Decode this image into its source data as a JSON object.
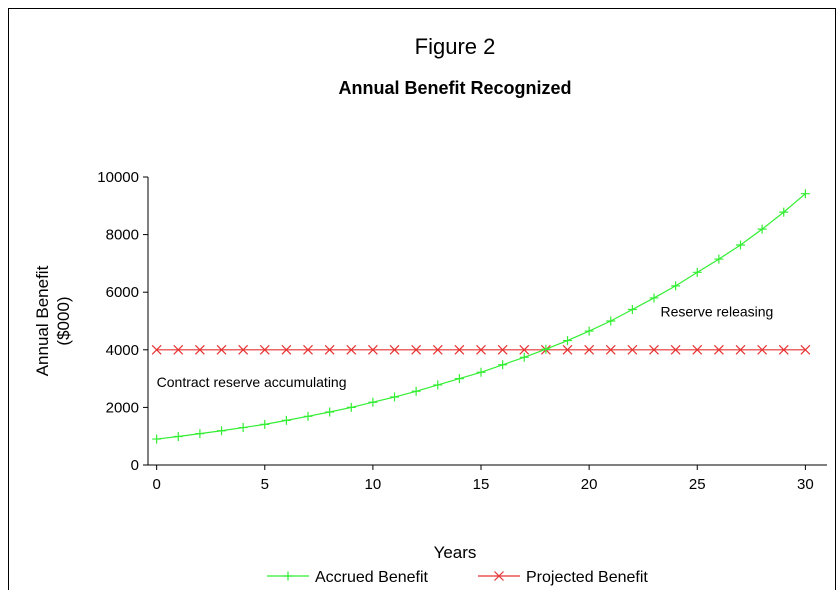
{
  "chart_data": {
    "type": "line",
    "figure_label": "Figure 2",
    "title": "Annual Benefit Recognized",
    "xlabel": "Years",
    "ylabel": [
      "Annual Benefit",
      "($000)"
    ],
    "xlim": [
      -0.4,
      31
    ],
    "ylim": [
      0,
      10000
    ],
    "xticks": [
      0,
      5,
      10,
      15,
      20,
      25,
      30
    ],
    "yticks": [
      0,
      2000,
      4000,
      6000,
      8000,
      10000
    ],
    "grid": false,
    "legend_position": "bottom",
    "x": [
      0,
      1,
      2,
      3,
      4,
      5,
      6,
      7,
      8,
      9,
      10,
      11,
      12,
      13,
      14,
      15,
      16,
      17,
      18,
      19,
      20,
      21,
      22,
      23,
      24,
      25,
      26,
      27,
      28,
      29,
      30
    ],
    "series": [
      {
        "name": "Accrued Benefit",
        "color": "#33ee33",
        "marker": "plus",
        "values": [
          900,
          990,
          1090,
          1190,
          1300,
          1410,
          1550,
          1690,
          1840,
          2000,
          2180,
          2360,
          2560,
          2780,
          3000,
          3220,
          3480,
          3740,
          4020,
          4320,
          4650,
          5000,
          5400,
          5800,
          6220,
          6690,
          7150,
          7640,
          8190,
          8780,
          9420
        ]
      },
      {
        "name": "Projected Benefit",
        "color": "#e63333",
        "marker": "x",
        "values": [
          4000,
          4000,
          4000,
          4000,
          4000,
          4000,
          4000,
          4000,
          4000,
          4000,
          4000,
          4000,
          4000,
          4000,
          4000,
          4000,
          4000,
          4000,
          4000,
          4000,
          4000,
          4000,
          4000,
          4000,
          4000,
          4000,
          4000,
          4000,
          4000,
          4000,
          4000
        ]
      }
    ],
    "annotations": [
      {
        "text": "Contract reserve accumulating",
        "x": 0,
        "y": 2700
      },
      {
        "text": "Reserve releasing",
        "x": 23.3,
        "y": 5150
      }
    ]
  }
}
